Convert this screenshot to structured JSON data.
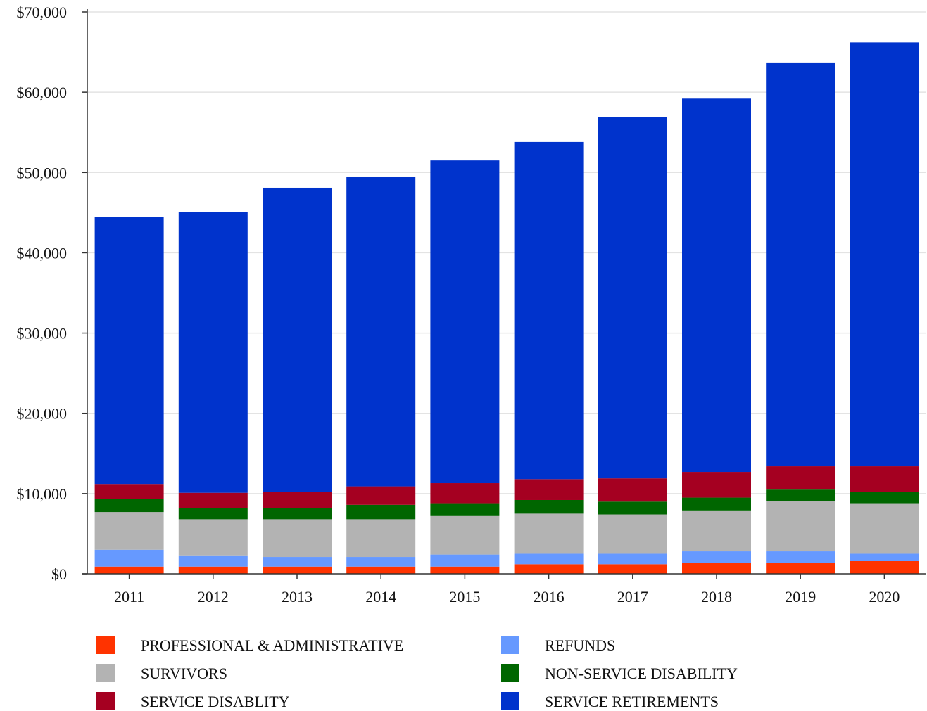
{
  "chart_data": {
    "type": "bar",
    "stacked": true,
    "title": "",
    "xlabel": "",
    "ylabel": "",
    "ylim": [
      0,
      70000
    ],
    "y_ticks": [
      0,
      10000,
      20000,
      30000,
      40000,
      50000,
      60000,
      70000
    ],
    "y_tick_labels": [
      "$0",
      "$10,000",
      "$20,000",
      "$30,000",
      "$40,000",
      "$50,000",
      "$60,000",
      "$70,000"
    ],
    "grid": true,
    "legend_position": "bottom",
    "categories": [
      "2011",
      "2012",
      "2013",
      "2014",
      "2015",
      "2016",
      "2017",
      "2018",
      "2019",
      "2020"
    ],
    "series": [
      {
        "name": "PROFESSIONAL & ADMINISTRATIVE",
        "color": "#ff3300",
        "values": [
          900,
          900,
          900,
          900,
          900,
          1200,
          1200,
          1400,
          1400,
          1600
        ]
      },
      {
        "name": "REFUNDS",
        "color": "#6699ff",
        "values": [
          2100,
          1400,
          1200,
          1200,
          1500,
          1300,
          1300,
          1400,
          1400,
          900
        ]
      },
      {
        "name": "SURVIVORS",
        "color": "#b3b3b3",
        "values": [
          4700,
          4500,
          4700,
          4700,
          4800,
          5000,
          4900,
          5100,
          6300,
          6300
        ]
      },
      {
        "name": "NON-SERVICE DISABILITY",
        "color": "#006600",
        "values": [
          1600,
          1400,
          1400,
          1800,
          1600,
          1700,
          1600,
          1600,
          1400,
          1400
        ]
      },
      {
        "name": "SERVICE DISABLITY",
        "color": "#a50021",
        "values": [
          1900,
          1900,
          2000,
          2300,
          2500,
          2600,
          2900,
          3200,
          2900,
          3200
        ]
      },
      {
        "name": "SERVICE RETIREMENTS",
        "color": "#0033cc",
        "values": [
          33300,
          35000,
          37900,
          38600,
          40200,
          42000,
          45000,
          46500,
          50300,
          52800
        ]
      }
    ],
    "legend_order": [
      "PROFESSIONAL & ADMINISTRATIVE",
      "REFUNDS",
      "SURVIVORS",
      "NON-SERVICE DISABILITY",
      "SERVICE DISABLITY",
      "SERVICE RETIREMENTS"
    ]
  }
}
